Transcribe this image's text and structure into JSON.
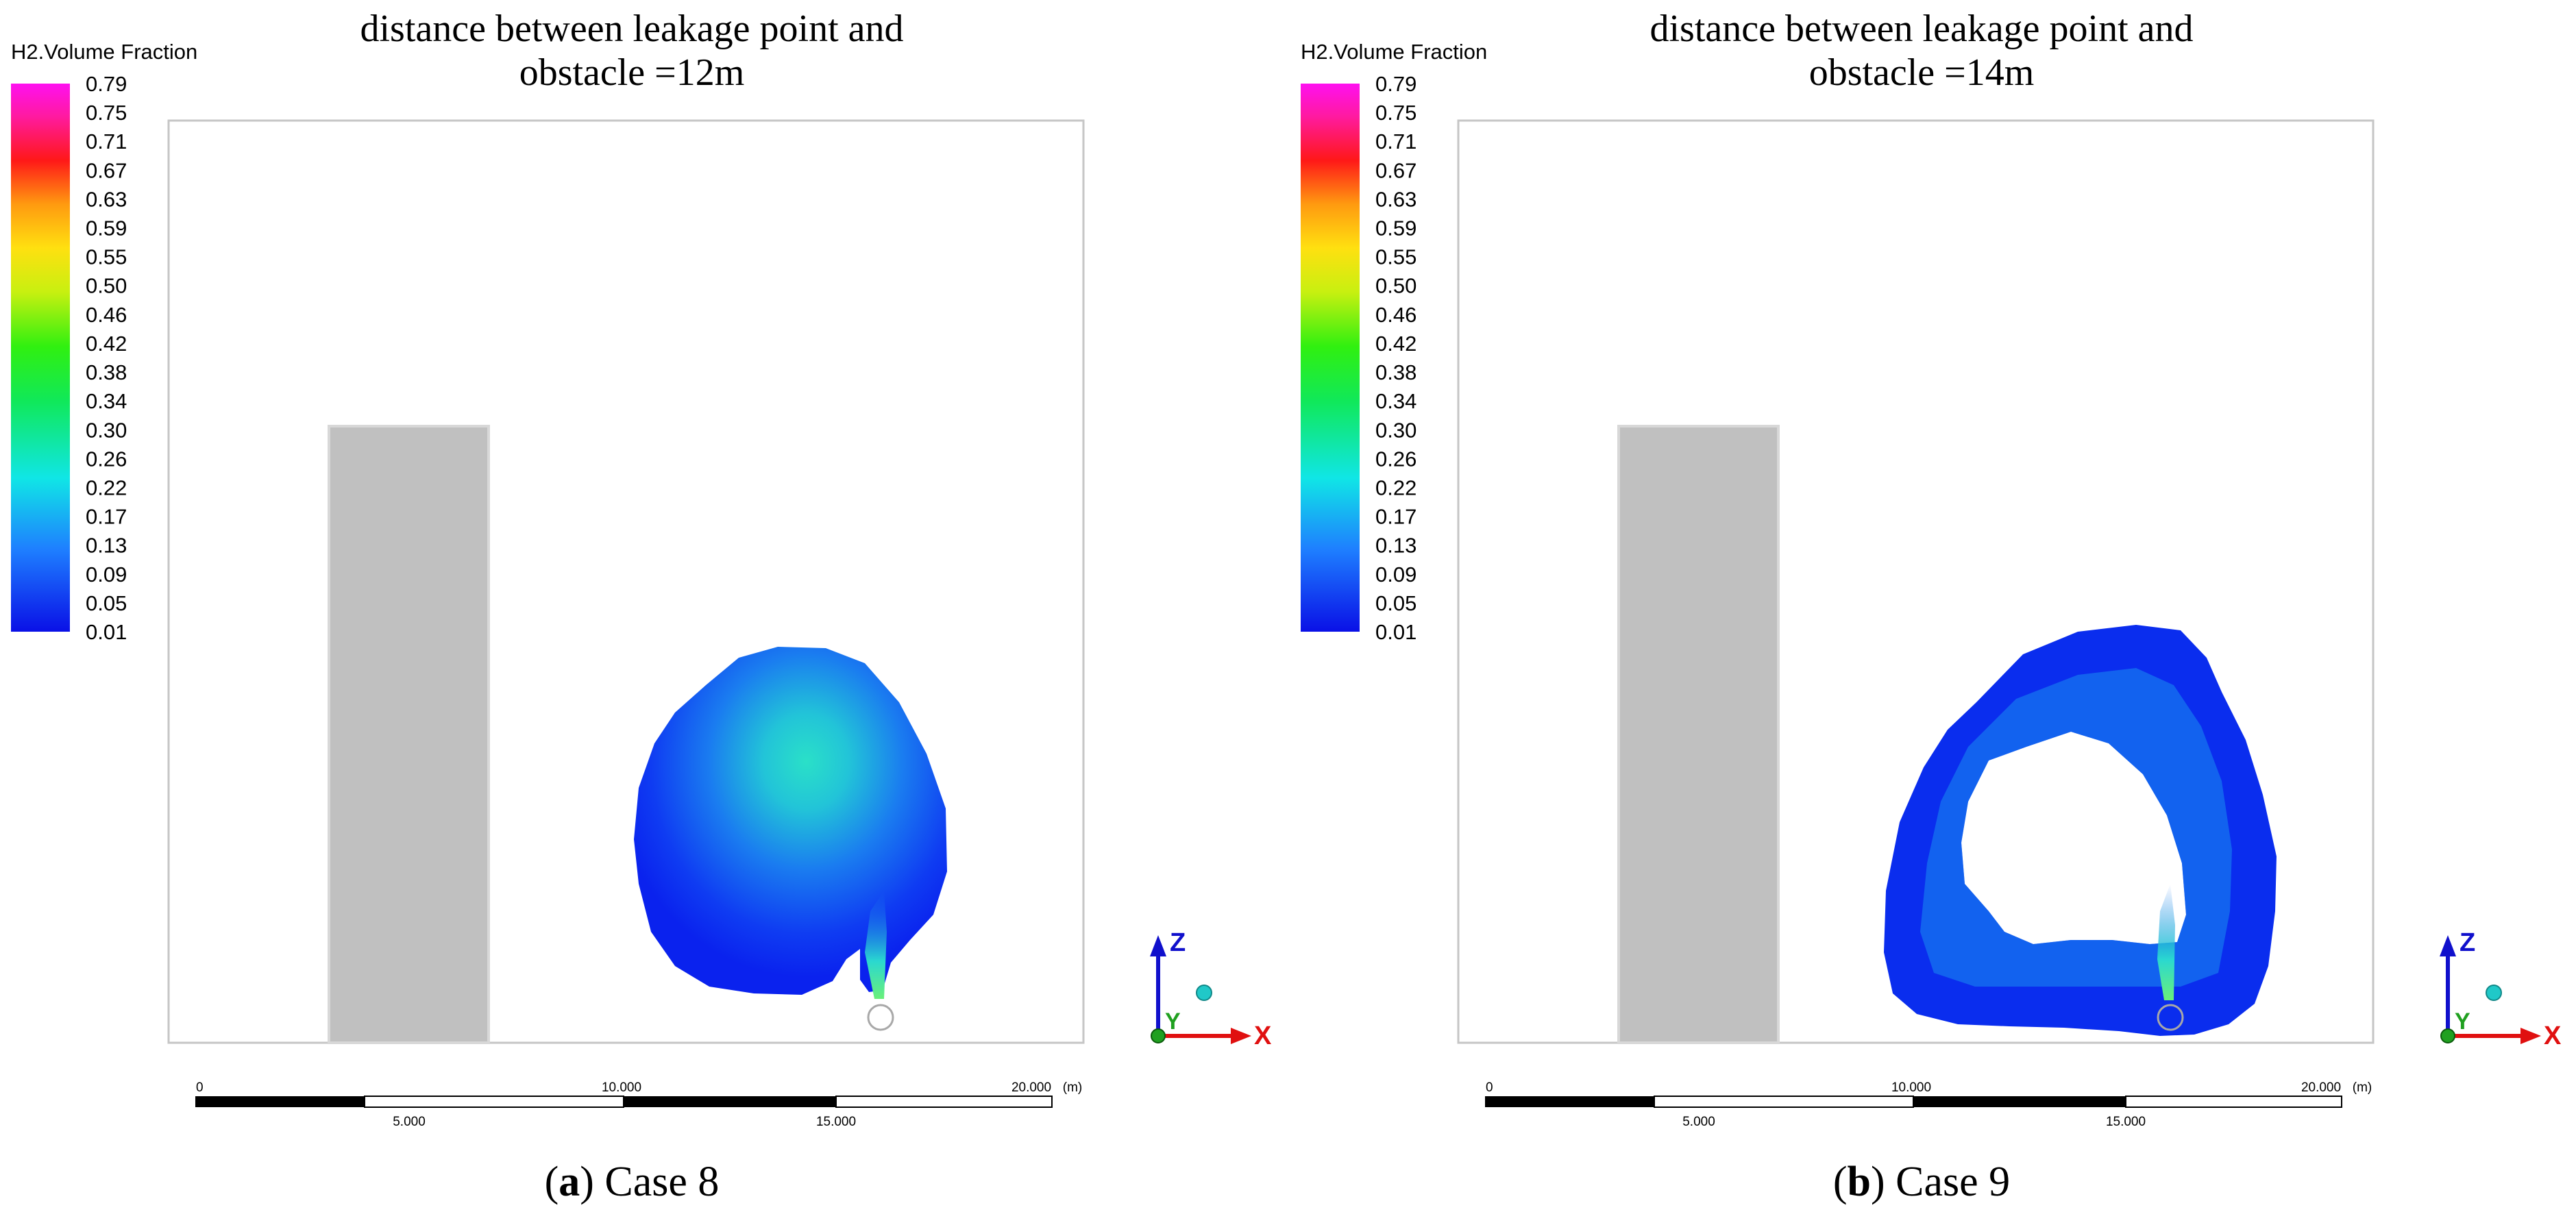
{
  "panels": [
    {
      "id": "a",
      "title_line1": "distance between leakage point and",
      "title_line2": "obstacle =12m",
      "legend_title": "H2.Volume Fraction",
      "caption_letter": "a",
      "caption_open": "(",
      "caption_close": ")",
      "caption_text": " Case 8",
      "cloud_shape": "filled",
      "axis_labels": {
        "z": "Z",
        "y": "Y",
        "x": "X"
      },
      "scale": {
        "top_labels": [
          "0",
          "10.000",
          "20.000",
          "(m)"
        ],
        "bottom_labels": [
          "5.000",
          "15.000"
        ]
      }
    },
    {
      "id": "b",
      "title_line1": "distance between leakage point and",
      "title_line2": "obstacle =14m",
      "legend_title": "H2.Volume Fraction",
      "caption_letter": "b",
      "caption_open": "(",
      "caption_close": ")",
      "caption_text": " Case 9",
      "cloud_shape": "ring",
      "axis_labels": {
        "z": "Z",
        "y": "Y",
        "x": "X"
      },
      "scale": {
        "top_labels": [
          "0",
          "10.000",
          "20.000",
          "(m)"
        ],
        "bottom_labels": [
          "5.000",
          "15.000"
        ]
      }
    }
  ],
  "legend_values": [
    "0.79",
    "0.75",
    "0.71",
    "0.67",
    "0.63",
    "0.59",
    "0.55",
    "0.50",
    "0.46",
    "0.42",
    "0.38",
    "0.34",
    "0.30",
    "0.26",
    "0.22",
    "0.17",
    "0.13",
    "0.09",
    "0.05",
    "0.01"
  ],
  "colors": {
    "obstacle": "#c0c0c0",
    "cloud_low": "#0a2dee",
    "cloud_mid": "#1a8ef0",
    "cloud_high": "#25d9c6",
    "axis_z": "#1010cc",
    "axis_x": "#e01010",
    "axis_y": "#20a020"
  }
}
